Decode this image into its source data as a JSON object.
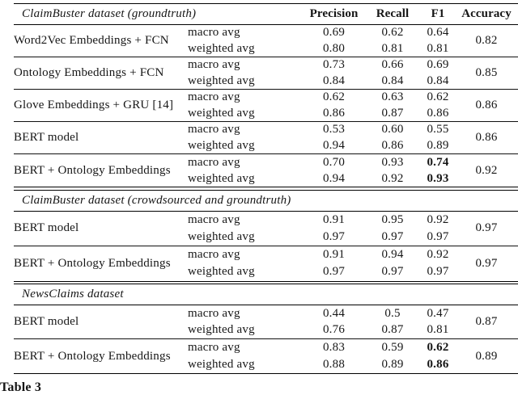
{
  "caption": "Table 3",
  "table": {
    "columns": [
      "Precision",
      "Recall",
      "F1",
      "Accuracy"
    ],
    "sections": [
      {
        "title": "ClaimBuster dataset (groundtruth)",
        "show_columns": true,
        "rows": [
          {
            "model": "Word2Vec Embeddings + FCN",
            "accuracy": "0.82",
            "sub": [
              {
                "avg": "macro avg",
                "precision": "0.69",
                "recall": "0.62",
                "f1": "0.64",
                "f1_bold": false
              },
              {
                "avg": "weighted avg",
                "precision": "0.80",
                "recall": "0.81",
                "f1": "0.81",
                "f1_bold": false
              }
            ]
          },
          {
            "model": "Ontology Embeddings + FCN",
            "accuracy": "0.85",
            "sub": [
              {
                "avg": "macro avg",
                "precision": "0.73",
                "recall": "0.66",
                "f1": "0.69",
                "f1_bold": false
              },
              {
                "avg": "weighted avg",
                "precision": "0.84",
                "recall": "0.84",
                "f1": "0.84",
                "f1_bold": false
              }
            ]
          },
          {
            "model": "Glove Embeddings + GRU [14]",
            "accuracy": "0.86",
            "sub": [
              {
                "avg": "macro avg",
                "precision": "0.62",
                "recall": "0.63",
                "f1": "0.62",
                "f1_bold": false
              },
              {
                "avg": "weighted avg",
                "precision": "0.86",
                "recall": "0.87",
                "f1": "0.86",
                "f1_bold": false
              }
            ]
          },
          {
            "model": "BERT model",
            "accuracy": "0.86",
            "sub": [
              {
                "avg": "macro avg",
                "precision": "0.53",
                "recall": "0.60",
                "f1": "0.55",
                "f1_bold": false
              },
              {
                "avg": "weighted avg",
                "precision": "0.94",
                "recall": "0.86",
                "f1": "0.89",
                "f1_bold": false
              }
            ]
          },
          {
            "model": "BERT + Ontology Embeddings",
            "accuracy": "0.92",
            "sub": [
              {
                "avg": "macro avg",
                "precision": "0.70",
                "recall": "0.93",
                "f1": "0.74",
                "f1_bold": true
              },
              {
                "avg": "weighted avg",
                "precision": "0.94",
                "recall": "0.92",
                "f1": "0.93",
                "f1_bold": true
              }
            ]
          }
        ]
      },
      {
        "title": "ClaimBuster dataset (crowdsourced and groundtruth)",
        "show_columns": false,
        "rows": [
          {
            "model": "BERT model",
            "accuracy": "0.97",
            "sub": [
              {
                "avg": "macro avg",
                "precision": "0.91",
                "recall": "0.95",
                "f1": "0.92",
                "f1_bold": false
              },
              {
                "avg": "weighted avg",
                "precision": "0.97",
                "recall": "0.97",
                "f1": "0.97",
                "f1_bold": false
              }
            ]
          },
          {
            "model": "BERT + Ontology Embeddings",
            "accuracy": "0.97",
            "sub": [
              {
                "avg": "macro avg",
                "precision": "0.91",
                "recall": "0.94",
                "f1": "0.92",
                "f1_bold": false
              },
              {
                "avg": "weighted avg",
                "precision": "0.97",
                "recall": "0.97",
                "f1": "0.97",
                "f1_bold": false
              }
            ]
          }
        ]
      },
      {
        "title": "NewsClaims dataset",
        "show_columns": false,
        "rows": [
          {
            "model": "BERT model",
            "accuracy": "0.87",
            "sub": [
              {
                "avg": "macro avg",
                "precision": "0.44",
                "recall": "0.5",
                "f1": "0.47",
                "f1_bold": false
              },
              {
                "avg": "weighted avg",
                "precision": "0.76",
                "recall": "0.87",
                "f1": "0.81",
                "f1_bold": false
              }
            ]
          },
          {
            "model": "BERT + Ontology Embeddings",
            "accuracy": "0.89",
            "sub": [
              {
                "avg": "macro avg",
                "precision": "0.83",
                "recall": "0.59",
                "f1": "0.62",
                "f1_bold": true
              },
              {
                "avg": "weighted avg",
                "precision": "0.88",
                "recall": "0.89",
                "f1": "0.86",
                "f1_bold": true
              }
            ]
          }
        ]
      }
    ]
  }
}
